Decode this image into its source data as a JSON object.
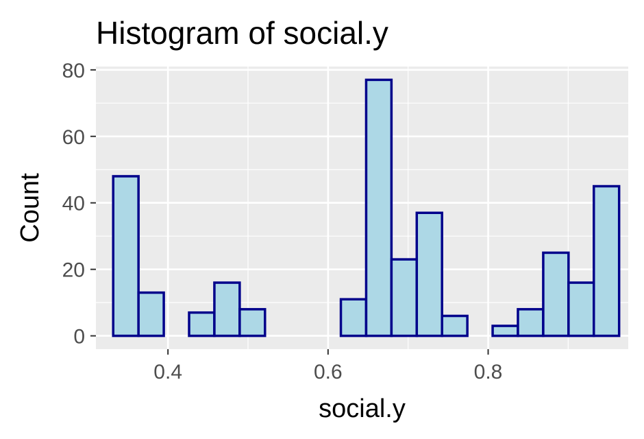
{
  "chart_data": {
    "type": "bar",
    "title": "Histogram of social.y",
    "xlabel": "social.y",
    "ylabel": "Count",
    "xlim": [
      0.31,
      0.975
    ],
    "ylim": [
      -4,
      81
    ],
    "x_ticks": [
      0.4,
      0.6,
      0.8
    ],
    "x_tick_labels": [
      "0.4",
      "0.6",
      "0.8"
    ],
    "y_ticks": [
      0,
      20,
      40,
      60,
      80
    ],
    "y_tick_labels": [
      "0",
      "20",
      "40",
      "60",
      "80"
    ],
    "bin_width": 0.0316,
    "bin_starts": [
      0.3316,
      0.3632,
      0.3948,
      0.4264,
      0.458,
      0.4896,
      0.5212,
      0.5528,
      0.5844,
      0.616,
      0.6476,
      0.6792,
      0.7108,
      0.7424,
      0.774,
      0.8056,
      0.8372,
      0.8688,
      0.9004,
      0.932
    ],
    "values": [
      48,
      13,
      0,
      7,
      16,
      8,
      0,
      0,
      0,
      11,
      77,
      23,
      37,
      6,
      0,
      3,
      8,
      25,
      16,
      45
    ],
    "grid": true,
    "colors": {
      "panel": "#ebebeb",
      "grid": "#ffffff",
      "bar_fill": "#add8e6",
      "bar_stroke": "#00008b"
    }
  }
}
